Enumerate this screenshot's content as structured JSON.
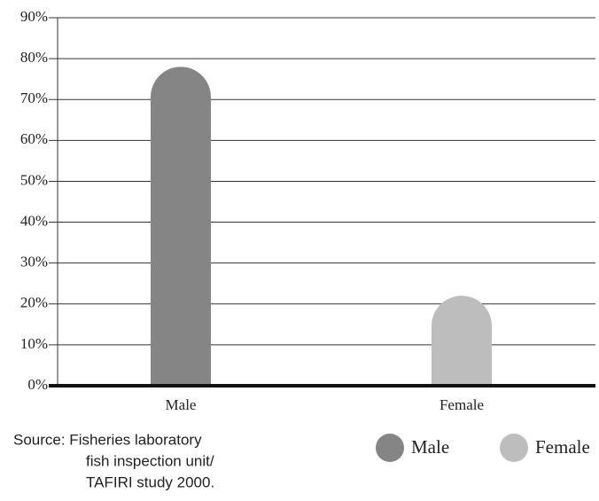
{
  "chart_data": {
    "type": "bar",
    "categories": [
      "Male",
      "Female"
    ],
    "values": [
      78,
      22
    ],
    "colors": [
      "#858585",
      "#bdbdbd"
    ],
    "ylim": [
      0,
      90
    ],
    "yticks": [
      {
        "value": 0,
        "label": "0%"
      },
      {
        "value": 10,
        "label": "10%"
      },
      {
        "value": 20,
        "label": "20%"
      },
      {
        "value": 30,
        "label": "30%"
      },
      {
        "value": 40,
        "label": "40%"
      },
      {
        "value": 50,
        "label": "50%"
      },
      {
        "value": 60,
        "label": "60%"
      },
      {
        "value": 70,
        "label": "70%"
      },
      {
        "value": 80,
        "label": "80%"
      },
      {
        "value": 90,
        "label": "90%"
      }
    ],
    "grid": true,
    "legend": "bottom-right",
    "source": [
      "Source: Fisheries laboratory",
      "fish inspection unit/",
      "TAFIRI study 2000."
    ]
  }
}
